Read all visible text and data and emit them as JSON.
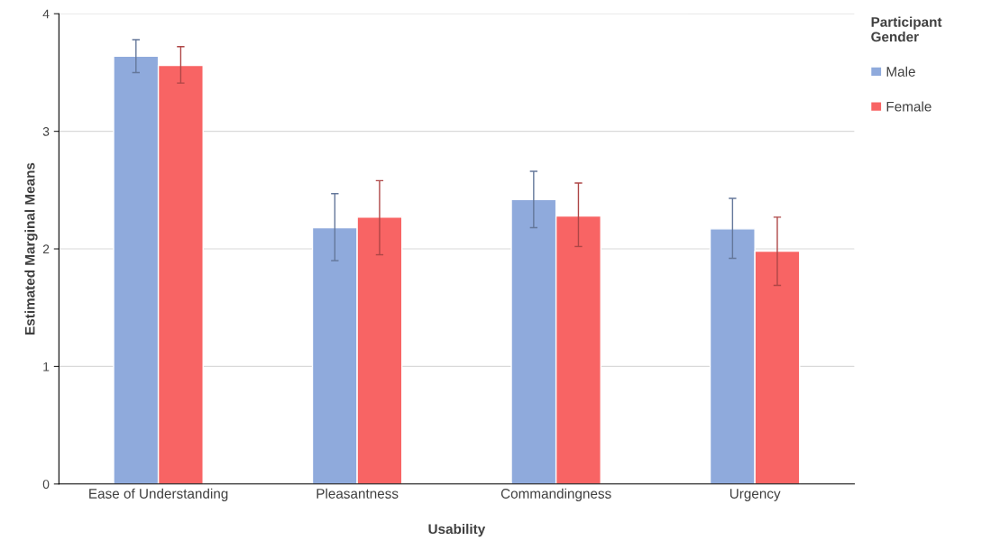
{
  "chart_data": {
    "type": "bar",
    "xlabel": "Usability",
    "ylabel": "Estimated Marginal Means",
    "legend_title": "Participant Gender",
    "categories": [
      "Ease of Understanding",
      "Pleasantness",
      "Commandingness",
      "Urgency"
    ],
    "series": [
      {
        "name": "Male",
        "color": "#8faadc",
        "values": [
          3.64,
          2.18,
          2.42,
          2.17
        ],
        "errors": [
          [
            3.5,
            3.78
          ],
          [
            1.9,
            2.47
          ],
          [
            2.18,
            2.66
          ],
          [
            1.92,
            2.43
          ]
        ]
      },
      {
        "name": "Female",
        "color": "#f86464",
        "values": [
          3.56,
          2.27,
          2.28,
          1.98
        ],
        "errors": [
          [
            3.41,
            3.72
          ],
          [
            1.95,
            2.58
          ],
          [
            2.02,
            2.56
          ],
          [
            1.69,
            2.27
          ]
        ]
      }
    ],
    "ylim": [
      0,
      4
    ],
    "yticks": [
      0,
      1,
      2,
      3,
      4
    ],
    "grid": "y",
    "legend": "top right"
  }
}
